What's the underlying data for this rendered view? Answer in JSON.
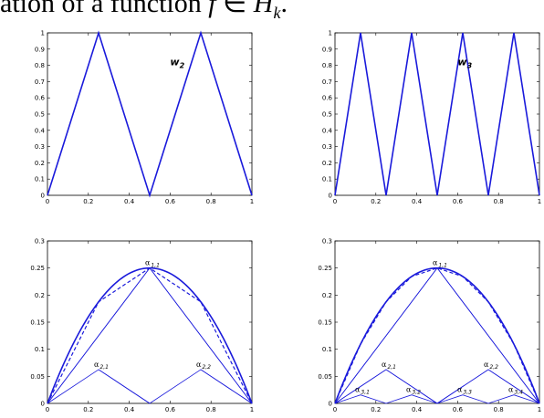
{
  "header": {
    "prefix": "ation of a function ",
    "var": "f",
    "middle": " ∈ ",
    "space": "H",
    "space_sub": "k",
    "end": "."
  },
  "colors": {
    "curve": "#1a1adb",
    "axis": "#000000"
  },
  "chart_data": [
    {
      "type": "line",
      "annotation": {
        "text": "w",
        "sub": "2"
      },
      "xlim": [
        0,
        1
      ],
      "ylim": [
        0,
        1
      ],
      "xticks": [
        0,
        0.2,
        0.4,
        0.6,
        0.8,
        1
      ],
      "yticks": [
        0,
        0.1,
        0.2,
        0.3,
        0.4,
        0.5,
        0.6,
        0.7,
        0.8,
        0.9,
        1
      ],
      "series": [
        {
          "style": "solid-thick",
          "x": [
            0,
            0.25,
            0.5,
            0.75,
            1
          ],
          "y": [
            0,
            1,
            0,
            1,
            0
          ]
        }
      ]
    },
    {
      "type": "line",
      "annotation": {
        "text": "w",
        "sub": "3"
      },
      "xlim": [
        0,
        1
      ],
      "ylim": [
        0,
        1
      ],
      "xticks": [
        0,
        0.2,
        0.4,
        0.6,
        0.8,
        1
      ],
      "yticks": [
        0,
        0.1,
        0.2,
        0.3,
        0.4,
        0.5,
        0.6,
        0.7,
        0.8,
        0.9,
        1
      ],
      "series": [
        {
          "style": "solid-thick",
          "x": [
            0,
            0.125,
            0.25,
            0.375,
            0.5,
            0.625,
            0.75,
            0.875,
            1
          ],
          "y": [
            0,
            1,
            0,
            1,
            0,
            1,
            0,
            1,
            0
          ]
        }
      ]
    },
    {
      "type": "line",
      "xlim": [
        0,
        1
      ],
      "ylim": [
        0,
        0.3
      ],
      "xticks": [
        0,
        0.2,
        0.4,
        0.6,
        0.8,
        1
      ],
      "yticks": [
        0,
        0.05,
        0.1,
        0.15,
        0.2,
        0.25,
        0.3
      ],
      "series": [
        {
          "style": "parabola",
          "x": [
            0,
            0.1,
            0.2,
            0.3,
            0.4,
            0.5,
            0.6,
            0.7,
            0.8,
            0.9,
            1
          ],
          "y": [
            0,
            0.09,
            0.16,
            0.21,
            0.24,
            0.25,
            0.24,
            0.21,
            0.16,
            0.09,
            0
          ]
        },
        {
          "style": "dashed",
          "x": [
            0,
            0.25,
            0.5,
            0.75,
            1
          ],
          "y": [
            0,
            0.1875,
            0.25,
            0.1875,
            0
          ]
        },
        {
          "style": "thin",
          "x": [
            0,
            0.5,
            1
          ],
          "y": [
            0,
            0.25,
            0
          ]
        },
        {
          "style": "thin",
          "x": [
            0,
            0.25,
            0.5,
            0.75,
            1
          ],
          "y": [
            0,
            0.0625,
            0,
            0.0625,
            0
          ]
        },
        {
          "style": "thin",
          "x": [
            0,
            0.5
          ],
          "y": [
            0,
            0.25
          ]
        },
        {
          "style": "thin",
          "x": [
            0.5,
            1
          ],
          "y": [
            0.25,
            0
          ]
        },
        {
          "style": "thin",
          "x": [
            0.25,
            0.5
          ],
          "y": [
            0.0625,
            0
          ]
        },
        {
          "style": "thin",
          "x": [
            0.75,
            1
          ],
          "y": [
            0.0625,
            0
          ]
        }
      ],
      "annotations": [
        {
          "text": "α",
          "sub": "1,1",
          "x": 0.5,
          "y": 0.25
        },
        {
          "text": "α",
          "sub": "2,1",
          "x": 0.25,
          "y": 0.0625
        },
        {
          "text": "α",
          "sub": "2,2",
          "x": 0.75,
          "y": 0.0625
        }
      ]
    },
    {
      "type": "line",
      "xlim": [
        0,
        1
      ],
      "ylim": [
        0,
        0.3
      ],
      "xticks": [
        0,
        0.2,
        0.4,
        0.6,
        0.8,
        1
      ],
      "yticks": [
        0,
        0.05,
        0.1,
        0.15,
        0.2,
        0.25,
        0.3
      ],
      "series": [
        {
          "style": "parabola",
          "x": [
            0,
            0.1,
            0.2,
            0.3,
            0.4,
            0.5,
            0.6,
            0.7,
            0.8,
            0.9,
            1
          ],
          "y": [
            0,
            0.09,
            0.16,
            0.21,
            0.24,
            0.25,
            0.24,
            0.21,
            0.16,
            0.09,
            0
          ]
        },
        {
          "style": "dashed",
          "x": [
            0,
            0.125,
            0.25,
            0.375,
            0.5,
            0.625,
            0.75,
            0.875,
            1
          ],
          "y": [
            0,
            0.109375,
            0.1875,
            0.234375,
            0.25,
            0.234375,
            0.1875,
            0.109375,
            0
          ]
        },
        {
          "style": "thin",
          "x": [
            0,
            0.5,
            1
          ],
          "y": [
            0,
            0.25,
            0
          ]
        },
        {
          "style": "thin",
          "x": [
            0,
            0.25,
            0.5,
            0.75,
            1
          ],
          "y": [
            0,
            0.0625,
            0,
            0.0625,
            0
          ]
        },
        {
          "style": "thin",
          "x": [
            0,
            0.125,
            0.25,
            0.375,
            0.5,
            0.625,
            0.75,
            0.875,
            1
          ],
          "y": [
            0,
            0.015625,
            0,
            0.015625,
            0,
            0.015625,
            0,
            0.015625,
            0
          ]
        },
        {
          "style": "thin",
          "x": [
            0,
            0.5
          ],
          "y": [
            0,
            0.25
          ]
        },
        {
          "style": "thin",
          "x": [
            0.5,
            1
          ],
          "y": [
            0.25,
            0
          ]
        },
        {
          "style": "thin",
          "x": [
            0,
            0.25
          ],
          "y": [
            0,
            0.0625
          ]
        },
        {
          "style": "thin",
          "x": [
            0.25,
            0.5
          ],
          "y": [
            0.0625,
            0
          ]
        },
        {
          "style": "thin",
          "x": [
            0.5,
            0.75
          ],
          "y": [
            0,
            0.0625
          ]
        },
        {
          "style": "thin",
          "x": [
            0.75,
            1
          ],
          "y": [
            0.0625,
            0
          ]
        }
      ],
      "annotations": [
        {
          "text": "α",
          "sub": "1,1",
          "x": 0.5,
          "y": 0.25
        },
        {
          "text": "α",
          "sub": "2,1",
          "x": 0.25,
          "y": 0.0625
        },
        {
          "text": "α",
          "sub": "2,2",
          "x": 0.75,
          "y": 0.0625
        },
        {
          "text": "α",
          "sub": "3,1",
          "x": 0.125,
          "y": 0.015625
        },
        {
          "text": "α",
          "sub": "3,2",
          "x": 0.375,
          "y": 0.015625
        },
        {
          "text": "α",
          "sub": "3,3",
          "x": 0.625,
          "y": 0.015625
        },
        {
          "text": "α",
          "sub": "3,4",
          "x": 0.875,
          "y": 0.015625
        }
      ]
    }
  ]
}
